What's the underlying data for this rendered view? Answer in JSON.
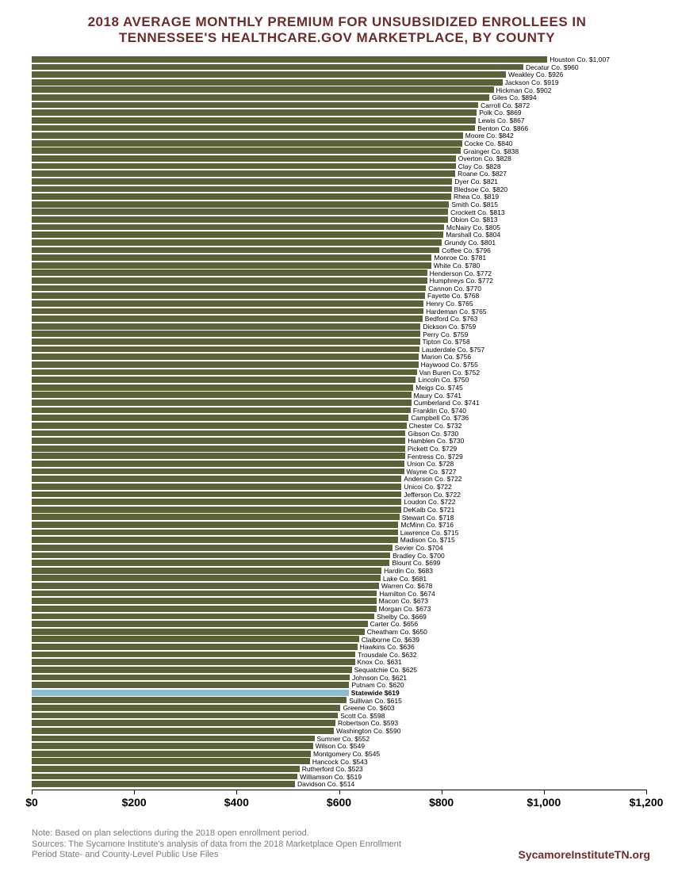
{
  "title_line1": "2018 AVERAGE MONTHLY PREMIUM FOR UNSUBSIDIZED ENROLLEES IN",
  "title_line2": "TENNESSEE'S HEALTHCARE.GOV MARKETPLACE, BY COUNTY",
  "title_color": "#6b2d2a",
  "title_fontsize": 17,
  "chart": {
    "type": "horizontal-bar",
    "bar_color": "#5a6238",
    "highlight_color": "#8abfcf",
    "background": "#ffffff",
    "label_fontsize": 8.5,
    "xaxis": {
      "min": 0,
      "max": 1200,
      "tick_step": 200,
      "ticks": [
        "$0",
        "$200",
        "$400",
        "$600",
        "$800",
        "$1,000",
        "$1,200"
      ],
      "tick_fontsize": 14
    },
    "bars": [
      {
        "name": "Houston Co.",
        "value": 1007,
        "label": "Houston Co. $1,007"
      },
      {
        "name": "Decatur Co.",
        "value": 960,
        "label": "Decatur Co. $960"
      },
      {
        "name": "Weakley Co.",
        "value": 926,
        "label": "Weakley Co. $926"
      },
      {
        "name": "Jackson Co.",
        "value": 919,
        "label": "Jackson Co. $919"
      },
      {
        "name": "Hickman Co.",
        "value": 902,
        "label": "Hickman Co. $902"
      },
      {
        "name": "Giles Co.",
        "value": 894,
        "label": "Giles Co. $894"
      },
      {
        "name": "Carroll Co.",
        "value": 872,
        "label": "Carroll Co. $872"
      },
      {
        "name": "Polk Co.",
        "value": 869,
        "label": "Polk Co. $869"
      },
      {
        "name": "Lewis Co.",
        "value": 867,
        "label": "Lewis Co. $867"
      },
      {
        "name": "Benton Co.",
        "value": 866,
        "label": "Benton Co. $866"
      },
      {
        "name": "Moore Co.",
        "value": 842,
        "label": "Moore Co. $842"
      },
      {
        "name": "Cocke Co.",
        "value": 840,
        "label": "Cocke Co. $840"
      },
      {
        "name": "Grainger Co.",
        "value": 838,
        "label": "Grainger Co. $838"
      },
      {
        "name": "Overton Co.",
        "value": 828,
        "label": "Overton Co. $828"
      },
      {
        "name": "Clay Co.",
        "value": 828,
        "label": "Clay Co. $828"
      },
      {
        "name": "Roane Co.",
        "value": 827,
        "label": "Roane Co. $827"
      },
      {
        "name": "Dyer Co.",
        "value": 821,
        "label": "Dyer Co. $821"
      },
      {
        "name": "Bledsoe Co.",
        "value": 820,
        "label": "Bledsoe Co. $820"
      },
      {
        "name": "Rhea Co.",
        "value": 819,
        "label": "Rhea Co. $819"
      },
      {
        "name": "Smith Co.",
        "value": 815,
        "label": "Smith Co. $815"
      },
      {
        "name": "Crockett Co.",
        "value": 813,
        "label": "Crockett Co. $813"
      },
      {
        "name": "Obion Co.",
        "value": 813,
        "label": "Obion Co. $813"
      },
      {
        "name": "McNairy Co.",
        "value": 805,
        "label": "McNairy Co. $805"
      },
      {
        "name": "Marshall Co.",
        "value": 804,
        "label": "Marshall Co. $804"
      },
      {
        "name": "Grundy Co.",
        "value": 801,
        "label": "Grundy Co. $801"
      },
      {
        "name": "Coffee Co.",
        "value": 796,
        "label": "Coffee Co. $796"
      },
      {
        "name": "Monroe Co.",
        "value": 781,
        "label": "Monroe Co. $781"
      },
      {
        "name": "White Co.",
        "value": 780,
        "label": "White Co. $780"
      },
      {
        "name": "Henderson Co.",
        "value": 772,
        "label": "Henderson Co. $772"
      },
      {
        "name": "Humphreys Co.",
        "value": 772,
        "label": "Humphreys Co. $772"
      },
      {
        "name": "Cannon Co.",
        "value": 770,
        "label": "Cannon Co. $770"
      },
      {
        "name": "Fayette Co.",
        "value": 768,
        "label": "Fayette Co. $768"
      },
      {
        "name": "Henry Co.",
        "value": 765,
        "label": "Henry Co. $765"
      },
      {
        "name": "Hardeman Co.",
        "value": 765,
        "label": "Hardeman Co. $765"
      },
      {
        "name": "Bedford Co.",
        "value": 763,
        "label": "Bedford Co. $763"
      },
      {
        "name": "Dickson Co.",
        "value": 759,
        "label": "Dickson Co. $759"
      },
      {
        "name": "Perry Co.",
        "value": 759,
        "label": "Perry Co. $759"
      },
      {
        "name": "Tipton Co.",
        "value": 758,
        "label": "Tipton Co. $758"
      },
      {
        "name": "Lauderdale Co.",
        "value": 757,
        "label": "Lauderdale Co. $757"
      },
      {
        "name": "Marion Co.",
        "value": 756,
        "label": "Marion Co. $756"
      },
      {
        "name": "Haywood Co.",
        "value": 755,
        "label": "Haywood Co. $755"
      },
      {
        "name": "Van Buren Co.",
        "value": 752,
        "label": "Van Buren Co. $752"
      },
      {
        "name": "Lincoln Co.",
        "value": 750,
        "label": "Lincoln Co. $750"
      },
      {
        "name": "Meigs Co.",
        "value": 745,
        "label": "Meigs Co. $745"
      },
      {
        "name": "Maury Co.",
        "value": 741,
        "label": "Maury Co. $741"
      },
      {
        "name": "Cumberland Co.",
        "value": 741,
        "label": "Cumberland Co. $741"
      },
      {
        "name": "Franklin Co.",
        "value": 740,
        "label": "Franklin Co. $740"
      },
      {
        "name": "Campbell Co.",
        "value": 736,
        "label": "Campbell Co. $736"
      },
      {
        "name": "Chester Co.",
        "value": 732,
        "label": "Chester Co. $732"
      },
      {
        "name": "Gibson Co.",
        "value": 730,
        "label": "Gibson Co. $730"
      },
      {
        "name": "Hamblen Co.",
        "value": 730,
        "label": "Hamblen Co. $730"
      },
      {
        "name": "Pickett Co.",
        "value": 729,
        "label": "Pickett Co. $729"
      },
      {
        "name": "Fentress Co.",
        "value": 729,
        "label": "Fentress Co. $729"
      },
      {
        "name": "Union Co.",
        "value": 728,
        "label": "Union Co. $728"
      },
      {
        "name": "Wayne Co.",
        "value": 727,
        "label": "Wayne Co. $727"
      },
      {
        "name": "Anderson Co.",
        "value": 722,
        "label": "Anderson Co. $722"
      },
      {
        "name": "Unicoi Co.",
        "value": 722,
        "label": "Unicoi Co. $722"
      },
      {
        "name": "Jefferson Co.",
        "value": 722,
        "label": "Jefferson Co. $722"
      },
      {
        "name": "Loudon Co.",
        "value": 722,
        "label": "Loudon Co. $722"
      },
      {
        "name": "DeKalb Co.",
        "value": 721,
        "label": "DeKalb Co. $721"
      },
      {
        "name": "Stewart Co.",
        "value": 718,
        "label": "Stewart Co. $718"
      },
      {
        "name": "McMinn Co.",
        "value": 716,
        "label": "McMinn Co. $716"
      },
      {
        "name": "Lawrence Co.",
        "value": 715,
        "label": "Lawrence Co. $715"
      },
      {
        "name": "Madison Co.",
        "value": 715,
        "label": "Madison Co. $715"
      },
      {
        "name": "Sevier Co.",
        "value": 704,
        "label": "Sevier Co. $704"
      },
      {
        "name": "Bradley Co.",
        "value": 700,
        "label": "Bradley Co. $700"
      },
      {
        "name": "Blount Co.",
        "value": 699,
        "label": "Blount Co. $699"
      },
      {
        "name": "Hardin Co.",
        "value": 683,
        "label": "Hardin Co. $683"
      },
      {
        "name": "Lake Co.",
        "value": 681,
        "label": "Lake Co. $681"
      },
      {
        "name": "Warren Co.",
        "value": 678,
        "label": "Warren Co. $678"
      },
      {
        "name": "Hamilton Co.",
        "value": 674,
        "label": "Hamilton Co. $674"
      },
      {
        "name": "Macon Co.",
        "value": 673,
        "label": "Macon Co. $673"
      },
      {
        "name": "Morgan Co.",
        "value": 673,
        "label": "Morgan Co. $673"
      },
      {
        "name": "Shelby Co.",
        "value": 669,
        "label": "Shelby Co. $669"
      },
      {
        "name": "Carter Co.",
        "value": 656,
        "label": "Carter Co. $656"
      },
      {
        "name": "Cheatham Co.",
        "value": 650,
        "label": "Cheatham Co. $650"
      },
      {
        "name": "Claiborne Co.",
        "value": 639,
        "label": "Claiborne Co. $639"
      },
      {
        "name": "Hawkins Co.",
        "value": 636,
        "label": "Hawkins Co. $636"
      },
      {
        "name": "Trousdale Co.",
        "value": 632,
        "label": "Trousdale Co. $632"
      },
      {
        "name": "Knox Co.",
        "value": 631,
        "label": "Knox Co. $631"
      },
      {
        "name": "Sequatchie Co.",
        "value": 625,
        "label": "Sequatchie Co. $625"
      },
      {
        "name": "Johnson Co.",
        "value": 621,
        "label": "Johnson Co. $621"
      },
      {
        "name": "Putnam Co.",
        "value": 620,
        "label": "Putnam Co. $620"
      },
      {
        "name": "Statewide",
        "value": 619,
        "label": "Statewide $619",
        "highlight": true
      },
      {
        "name": "Sullivan Co.",
        "value": 615,
        "label": "Sullivan Co. $615"
      },
      {
        "name": "Greene Co.",
        "value": 603,
        "label": "Greene Co. $603"
      },
      {
        "name": "Scott Co.",
        "value": 598,
        "label": "Scott Co. $598"
      },
      {
        "name": "Robertson Co.",
        "value": 593,
        "label": "Robertson Co. $593"
      },
      {
        "name": "Washington Co.",
        "value": 590,
        "label": "Washington Co. $590"
      },
      {
        "name": "Sumner Co.",
        "value": 552,
        "label": "Sumner Co. $552"
      },
      {
        "name": "Wilson Co.",
        "value": 549,
        "label": "Wilson Co. $549"
      },
      {
        "name": "Montgomery Co.",
        "value": 545,
        "label": "Montgomery Co. $545"
      },
      {
        "name": "Hancock Co.",
        "value": 543,
        "label": "Hancock Co. $543"
      },
      {
        "name": "Rutherford Co.",
        "value": 523,
        "label": "Rutherford Co. $523"
      },
      {
        "name": "Williamson Co.",
        "value": 519,
        "label": "Williamson Co. $519"
      },
      {
        "name": "Davidson Co.",
        "value": 514,
        "label": "Davidson Co. $514"
      }
    ]
  },
  "footer": {
    "note_line1": "Note: Based on plan selections during the 2018 open enrollment period.",
    "note_line2": "Sources: The Sycamore Institute's analysis of data from the 2018 Marketplace Open Enrollment",
    "note_line3": "Period State- and County-Level Public Use Files",
    "org": "SycamoreInstituteTN.org",
    "org_color": "#6b2d2a",
    "note_color": "#7a7a7a"
  }
}
